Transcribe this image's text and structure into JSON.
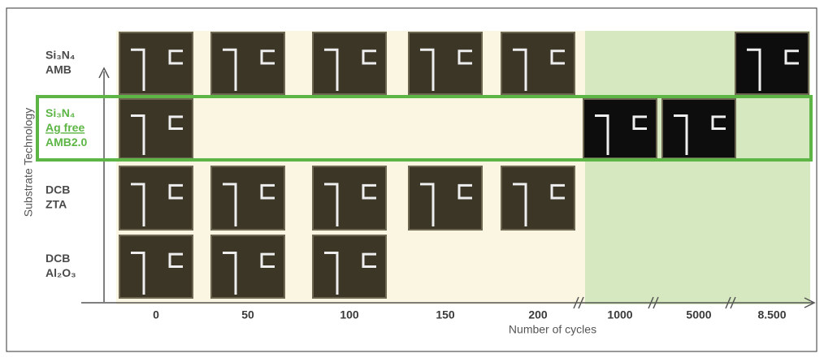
{
  "y_axis_title": "Substrate Technology",
  "x_axis_title": "Number of cycles",
  "rows": [
    {
      "lines": [
        "Si₃N₄",
        "AMB"
      ]
    },
    {
      "lines": [
        "Si₃N₄",
        "Ag free",
        "AMB2.0"
      ]
    },
    {
      "lines": [
        "DCB",
        "ZTA"
      ]
    },
    {
      "lines": [
        "DCB",
        "Al₂O₃"
      ]
    }
  ],
  "columns": [
    "0",
    "50",
    "100",
    "150",
    "200",
    "1000",
    "5000",
    "8.500"
  ]
}
